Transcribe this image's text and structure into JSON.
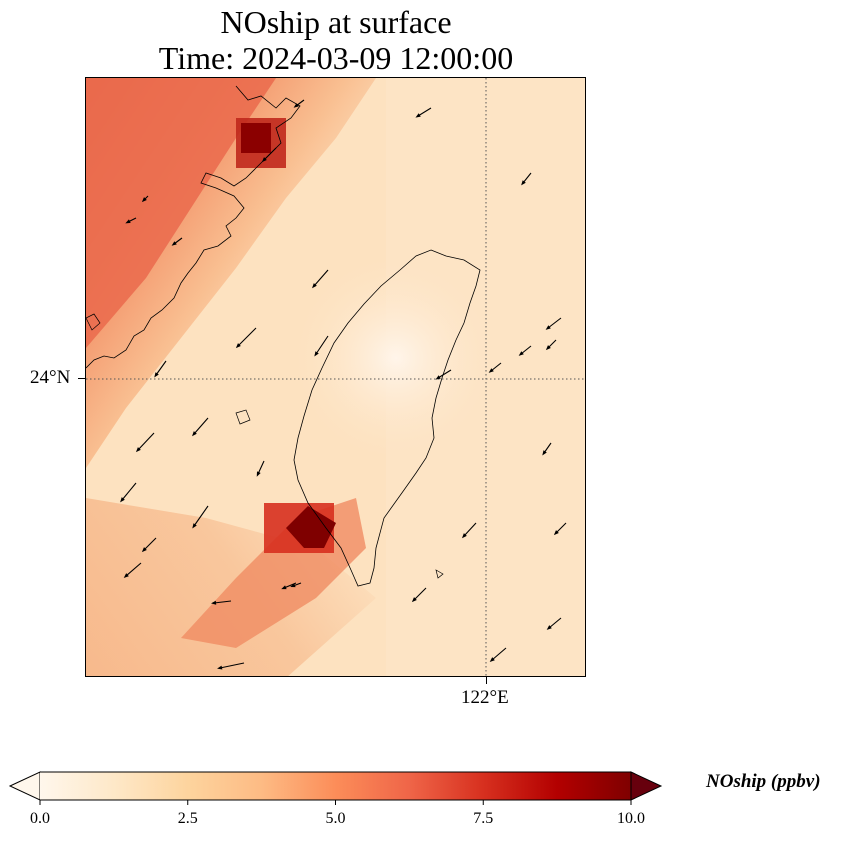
{
  "title": {
    "line1": "NOship at surface",
    "line2": "Time: 2024-03-09 12:00:00"
  },
  "map": {
    "gridlines": {
      "lat_label": "24°N",
      "lon_label": "122°E",
      "style": "dotted"
    },
    "colormap": "OrRd",
    "background_color": "#fde2c0",
    "wind_vectors": "black arrows",
    "coastline_color": "#000000"
  },
  "colorbar": {
    "label": "NOship (ppbv)",
    "min": 0.0,
    "max": 10.0,
    "extend": "both",
    "ticks": [
      "0.0",
      "2.5",
      "5.0",
      "7.5",
      "10.0"
    ],
    "colors": [
      "#fff7ec",
      "#fee8c8",
      "#fdd49e",
      "#fdbb84",
      "#fc8d59",
      "#ef6548",
      "#d7301f",
      "#b30000",
      "#7f0000"
    ]
  }
}
